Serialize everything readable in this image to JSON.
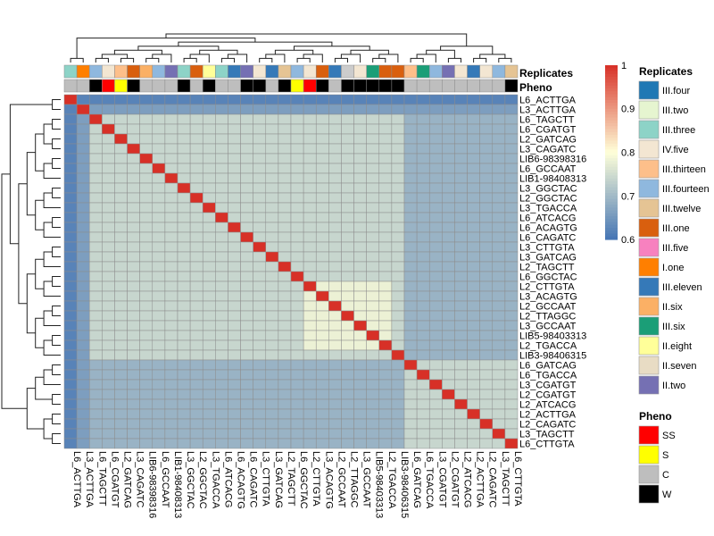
{
  "chart_data": {
    "type": "heatmap",
    "title": "",
    "samples": [
      "L6_ACTTGA",
      "L3_ACTTGA",
      "L6_TAGCTT",
      "L6_CGATGT",
      "L2_GATCAG",
      "L3_CAGATC",
      "LIB6-98398316",
      "L6_GCCAAT",
      "LIB1-98408313",
      "L3_GGCTAC",
      "L2_GGCTAC",
      "L3_TGACCA",
      "L6_ATCACG",
      "L6_ACAGTG",
      "L6_CAGATC",
      "L3_CTTGTA",
      "L3_GATCAG",
      "L2_TAGCTT",
      "L6_GGCTAC",
      "L2_CTTGTA",
      "L3_ACAGTG",
      "L2_GCCAAT",
      "L2_TTAGGC",
      "L3_GCCAAT",
      "LIB5-98403313",
      "L2_TGACCA",
      "LIB3-98406315",
      "L6_GATCAG",
      "L6_TGACCA",
      "L3_CGATGT",
      "L2_CGATGT",
      "L2_ATCACG",
      "L2_ACTTGA",
      "L2_CAGATC",
      "L3_TAGCTT",
      "L6_CTTGTA"
    ],
    "replicates": [
      "III.three",
      "I.one",
      "III.fourteen",
      "IV.five",
      "III.thirteen",
      "III.one",
      "II.six",
      "III.fourteen",
      "II.two",
      "III.three",
      "III.one",
      "II.eight",
      "III.three",
      "III.eleven",
      "II.two",
      "IV.five",
      "III.eleven",
      "III.twelve",
      "III.fourteen",
      "IV.five",
      "III.one",
      "III.eleven",
      "II.five",
      "IV.five",
      "III.six",
      "III.one",
      "III.one",
      "III.thirteen",
      "III.six",
      "III.fourteen",
      "II.two",
      "IV.five",
      "III.eleven",
      "IV.five",
      "III.fourteen",
      "III.twelve"
    ],
    "pheno": [
      "C",
      "C",
      "W",
      "SS",
      "S",
      "W",
      "C",
      "C",
      "C",
      "W",
      "C",
      "W",
      "C",
      "C",
      "W",
      "W",
      "C",
      "W",
      "S",
      "SS",
      "W",
      "C",
      "W",
      "W",
      "W",
      "W",
      "W",
      "C",
      "C",
      "C",
      "C",
      "C",
      "C",
      "C",
      "C",
      "W"
    ],
    "color_scale": {
      "min": 0.6,
      "max": 1,
      "ticks": [
        0.6,
        0.7,
        0.8,
        0.9,
        1
      ],
      "low_color": "#4575B4",
      "mid_color": "#FFFFD9",
      "high_color": "#D73027"
    },
    "legend_replicates_title": "Replicates",
    "legend_pheno_title": "Pheno",
    "annotation_row_labels": [
      "Replicates",
      "Pheno"
    ],
    "replicate_levels": [
      {
        "label": "III.four",
        "color": "#1F78B4"
      },
      {
        "label": "III.two",
        "color": "#E6F5D0"
      },
      {
        "label": "III.three",
        "color": "#8DD3C7"
      },
      {
        "label": "IV.five",
        "color": "#F3E6D2"
      },
      {
        "label": "III.thirteen",
        "color": "#FDBF8A"
      },
      {
        "label": "III.fourteen",
        "color": "#8FB8DE"
      },
      {
        "label": "III.twelve",
        "color": "#E5C494"
      },
      {
        "label": "III.one",
        "color": "#D95F0E"
      },
      {
        "label": "III.five",
        "color": "#F781BF"
      },
      {
        "label": "I.one",
        "color": "#FF7F00"
      },
      {
        "label": "III.eleven",
        "color": "#3579B8"
      },
      {
        "label": "II.six",
        "color": "#FBB065"
      },
      {
        "label": "III.six",
        "color": "#1B9E77"
      },
      {
        "label": "II.eight",
        "color": "#FFFF99"
      },
      {
        "label": "II.seven",
        "color": "#E8DCC4"
      },
      {
        "label": "II.two",
        "color": "#7570B3"
      }
    ],
    "pheno_levels": [
      {
        "label": "SS",
        "color": "#FF0000"
      },
      {
        "label": "S",
        "color": "#FFFF00"
      },
      {
        "label": "C",
        "color": "#BEBEBE"
      },
      {
        "label": "W",
        "color": "#000000"
      }
    ],
    "group_a": [
      0,
      1
    ],
    "group_b": [
      2,
      3,
      4,
      5,
      6,
      7,
      8,
      9,
      10,
      11,
      12,
      13,
      14,
      15,
      16,
      17,
      18,
      19,
      20,
      21,
      22,
      23,
      24,
      25,
      26
    ],
    "group_c": [
      27,
      28,
      29,
      30,
      31,
      32,
      33,
      34,
      35
    ],
    "correlation_levels": {
      "diagonal": 1.0,
      "within_main_group": 0.74,
      "between_main_groups": 0.69,
      "first_sample_vs_others": 0.62,
      "second_sample_vs_others": 0.66,
      "hot_block_value": 0.78,
      "hot_block_members": [
        19,
        20,
        21,
        22,
        23,
        24,
        25
      ]
    }
  }
}
